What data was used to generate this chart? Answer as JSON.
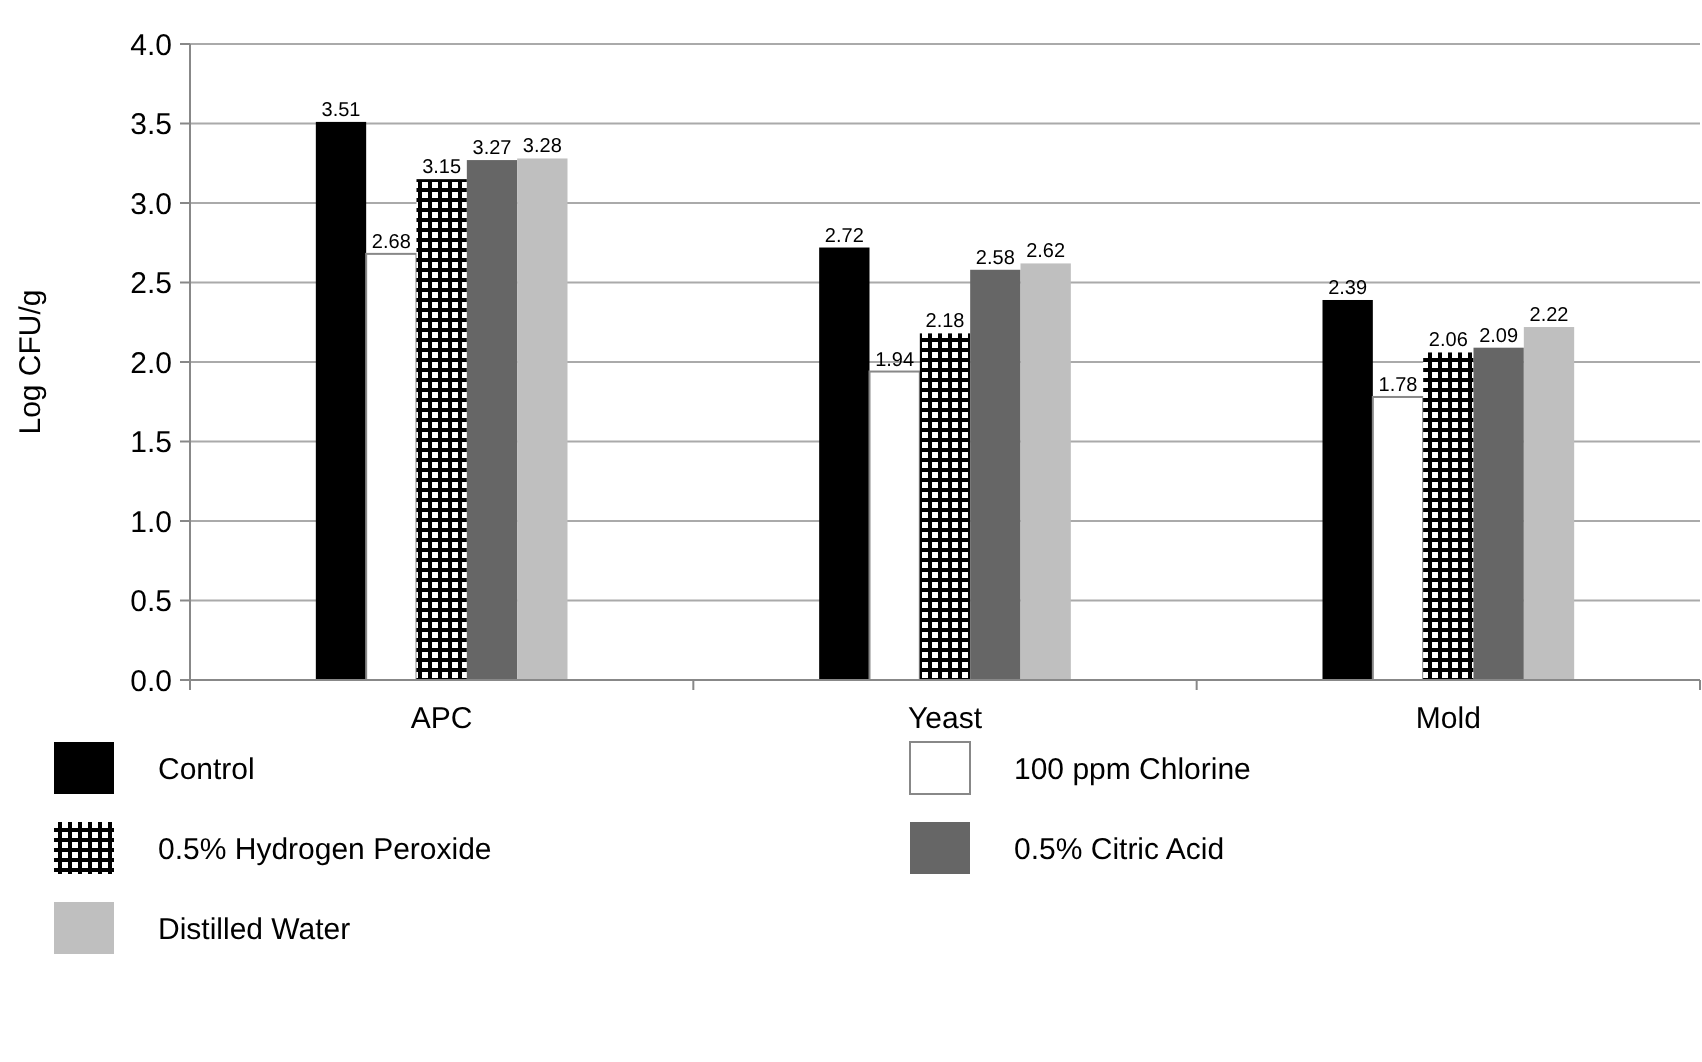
{
  "chart_data": {
    "type": "bar",
    "ylabel": "Log CFU/g",
    "categories": [
      "APC",
      "Yeast",
      "Mold"
    ],
    "series": [
      {
        "name": "Control",
        "color": "#000000",
        "values": [
          3.51,
          2.72,
          2.39
        ]
      },
      {
        "name": "100 ppm Chlorine",
        "color": "#ffffff",
        "values": [
          2.68,
          1.94,
          1.78
        ]
      },
      {
        "name": "0.5% Hydrogen Peroxide",
        "color": "#000000",
        "values": [
          3.15,
          2.18,
          2.06
        ]
      },
      {
        "name": "0.5% Citric Acid",
        "color": "#666666",
        "values": [
          3.27,
          2.58,
          2.09
        ]
      },
      {
        "name": "Distilled Water",
        "color": "#bfbfbf",
        "values": [
          3.28,
          2.62,
          2.22
        ]
      }
    ],
    "ylim": [
      0,
      4
    ],
    "yticks": [
      {
        "value": 0,
        "label": "0.0"
      },
      {
        "value": 0.5,
        "label": "0.5"
      },
      {
        "value": 1,
        "label": "1.0"
      },
      {
        "value": 1.5,
        "label": "1.5"
      },
      {
        "value": 2,
        "label": "2.0"
      },
      {
        "value": 2.5,
        "label": "2.5"
      },
      {
        "value": 3,
        "label": "3.0"
      },
      {
        "value": 3.5,
        "label": "3.5"
      },
      {
        "value": 4,
        "label": "4.0"
      }
    ],
    "grid": "y",
    "data_labels": true,
    "legend": "bottom"
  }
}
